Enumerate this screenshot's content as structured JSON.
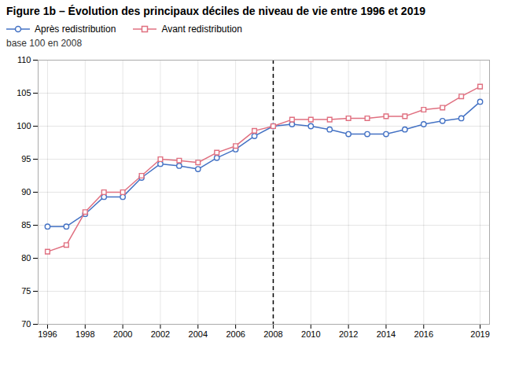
{
  "chart_data": {
    "type": "line",
    "title": "Figure 1b – Évolution des principaux déciles de niveau de vie entre 1996 et 2019",
    "subtitle": "base 100 en 2008",
    "x": [
      1996,
      1997,
      1998,
      1999,
      2000,
      2001,
      2002,
      2003,
      2004,
      2005,
      2006,
      2007,
      2008,
      2009,
      2010,
      2011,
      2012,
      2013,
      2014,
      2015,
      2016,
      2017,
      2018,
      2019
    ],
    "series": [
      {
        "name": "Après redistribution",
        "color": "#4472C4",
        "marker": "circle",
        "values": [
          84.8,
          84.8,
          86.7,
          89.3,
          89.3,
          92.2,
          94.3,
          94.0,
          93.5,
          95.2,
          96.5,
          98.5,
          100.0,
          100.3,
          100.0,
          99.5,
          98.8,
          98.8,
          98.8,
          99.5,
          100.3,
          100.8,
          101.2,
          103.7
        ]
      },
      {
        "name": "Avant redistribution",
        "color": "#E07080",
        "marker": "square",
        "values": [
          81.0,
          82.0,
          87.0,
          90.0,
          90.0,
          92.5,
          95.0,
          94.8,
          94.5,
          96.0,
          97.0,
          99.3,
          100.0,
          101.0,
          101.0,
          101.0,
          101.2,
          101.2,
          101.5,
          101.5,
          102.5,
          102.8,
          104.5,
          106.0
        ]
      }
    ],
    "vline": {
      "x": 2008,
      "color": "#000000",
      "line_style": "dashed"
    },
    "xlim": [
      1995.5,
      2019.5
    ],
    "ylim": [
      70,
      110
    ],
    "xticks": [
      1996,
      1998,
      2000,
      2002,
      2004,
      2006,
      2008,
      2010,
      2012,
      2014,
      2016,
      2019
    ],
    "yticks": [
      70,
      75,
      80,
      85,
      90,
      95,
      100,
      105,
      110
    ],
    "grid": true,
    "legend": "top"
  }
}
